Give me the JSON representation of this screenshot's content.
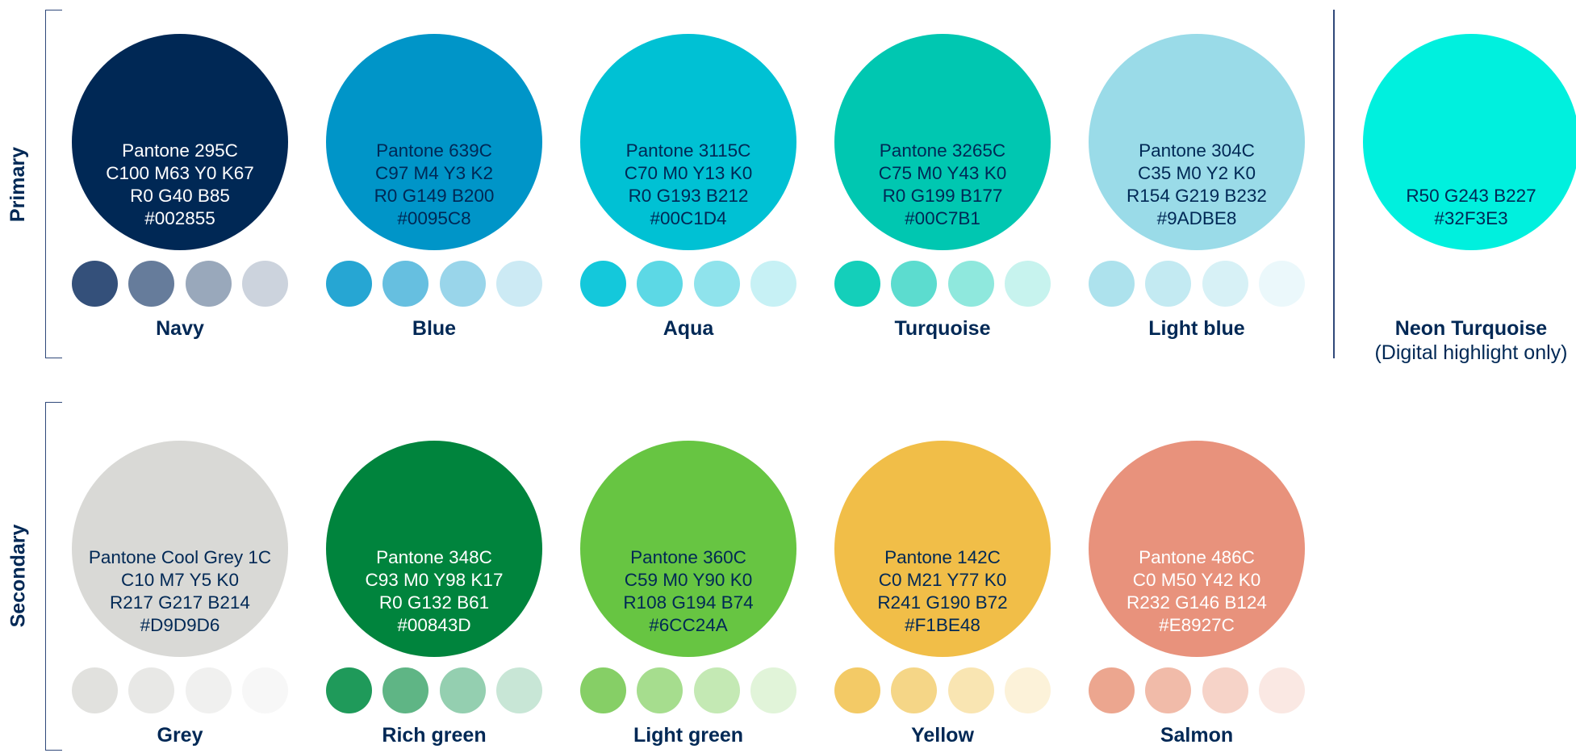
{
  "groups": {
    "primary": {
      "label": "Primary"
    },
    "secondary": {
      "label": "Secondary"
    }
  },
  "primary_colors": [
    {
      "name": "Navy",
      "pantone": "Pantone 295C",
      "cmyk": "C100  M63  Y0  K67",
      "rgb": "R0  G40  B85",
      "hex": "#002855",
      "color": "#002855",
      "text_color": "#ffffff",
      "tints": [
        "#34507a",
        "#667c9b",
        "#99a8bb",
        "#ccd3dd"
      ]
    },
    {
      "name": "Blue",
      "pantone": "Pantone 639C",
      "cmyk": "C97  M4  Y3  K2",
      "rgb": "R0  G149  B200",
      "hex": "#0095C8",
      "color": "#0095C8",
      "text_color": "#002855",
      "tints": [
        "#26a6d3",
        "#66bfe0",
        "#99d5ea",
        "#cceaf4"
      ]
    },
    {
      "name": "Aqua",
      "pantone": "Pantone 3115C",
      "cmyk": "C70  M0  Y13  K0",
      "rgb": "R0  G193  B212",
      "hex": "#00C1D4",
      "color": "#00C1D4",
      "text_color": "#002855",
      "tints": [
        "#14c8db",
        "#5cd8e5",
        "#8fe3ec",
        "#c7f1f5"
      ]
    },
    {
      "name": "Turquoise",
      "pantone": "Pantone 3265C",
      "cmyk": "C75  M0  Y43  K0",
      "rgb": "R0  G199  B177",
      "hex": "#00C7B1",
      "color": "#00C7B1",
      "text_color": "#002855",
      "tints": [
        "#14cfba",
        "#5cdccf",
        "#8fe8dd",
        "#c7f3ee"
      ]
    },
    {
      "name": "Light blue",
      "pantone": "Pantone 304C",
      "cmyk": "C35  M0  Y2  K0",
      "rgb": "R154  G219  B232",
      "hex": "#9ADBE8",
      "color": "#9ADBE8",
      "text_color": "#002855",
      "tints": [
        "#ade2ed",
        "#c3eaf2",
        "#d7f1f6",
        "#ebf8fb"
      ]
    }
  ],
  "neon": {
    "name": "Neon Turquoise",
    "note": "(Digital highlight only)",
    "rgb": "R50  G243  B227",
    "hex": "#32F3E3",
    "color": "#00F0DE",
    "text_color": "#002855"
  },
  "secondary_colors": [
    {
      "name": "Grey",
      "pantone": "Pantone Cool Grey 1C",
      "cmyk": "C10  M7  Y5  K0",
      "rgb": "R217  G217  B214",
      "hex": "#D9D9D6",
      "color": "#D9D9D6",
      "text_color": "#002855",
      "tints": [
        "#e1e1de",
        "#e8e8e6",
        "#f0f0ef",
        "#f7f7f7"
      ]
    },
    {
      "name": "Rich green",
      "pantone": "Pantone 348C",
      "cmyk": "C93  M0  Y98  K17",
      "rgb": "R0  G132  B61",
      "hex": "#00843D",
      "color": "#00843D",
      "text_color": "#ffffff",
      "tints": [
        "#1f9a5a",
        "#5fb585",
        "#94cfb0",
        "#c8e6d6"
      ]
    },
    {
      "name": "Light green",
      "pantone": "Pantone 360C",
      "cmyk": "C59  M0  Y90  K0",
      "rgb": "R108  G194  B74",
      "hex": "#6CC24A",
      "color": "#67C542",
      "text_color": "#002855",
      "tints": [
        "#86cf66",
        "#a6dd8e",
        "#c4e9b4",
        "#e1f4d9"
      ]
    },
    {
      "name": "Yellow",
      "pantone": "Pantone 142C",
      "cmyk": "C0  M21  Y77  K0",
      "rgb": "R241  G190  B72",
      "hex": "#F1BE48",
      "color": "#F1BE48",
      "text_color": "#002855",
      "tints": [
        "#f3ca66",
        "#f5d687",
        "#f9e5b2",
        "#fcf2d9"
      ]
    },
    {
      "name": "Salmon",
      "pantone": "Pantone 486C",
      "cmyk": "C0  M50  Y42  K0",
      "rgb": "R232  G146  B124",
      "hex": "#E8927C",
      "color": "#E8927C",
      "text_color": "#ffffff",
      "tints": [
        "#eca68f",
        "#f1bba9",
        "#f6d3c8",
        "#fae8e3"
      ]
    }
  ]
}
